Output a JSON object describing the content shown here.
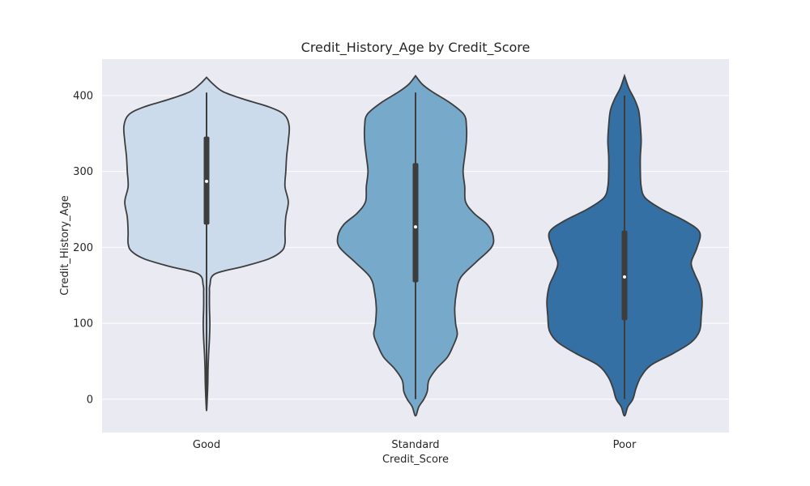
{
  "chart_data": {
    "type": "violin",
    "title": "Credit_History_Age by Credit_Score",
    "xlabel": "Credit_Score",
    "ylabel": "Credit_History_Age",
    "ylim": [
      -44,
      448
    ],
    "yticks": [
      0,
      100,
      200,
      300,
      400
    ],
    "grid": true,
    "colors": {
      "background": "#eaeaf2",
      "outline": "#3d3d3d",
      "box": "#3d3d3d"
    },
    "categories": [
      "Good",
      "Standard",
      "Poor"
    ],
    "series": [
      {
        "category": "Good",
        "color": "#cbdbeb",
        "min": 0,
        "q1": 230,
        "median": 287,
        "q3": 346,
        "max": 404,
        "kde_ymin": -15,
        "kde_ymax": 424,
        "density": [
          [
            -15,
            0.0
          ],
          [
            0,
            0.008
          ],
          [
            20,
            0.015
          ],
          [
            40,
            0.018
          ],
          [
            60,
            0.025
          ],
          [
            80,
            0.035
          ],
          [
            100,
            0.04
          ],
          [
            120,
            0.035
          ],
          [
            140,
            0.035
          ],
          [
            150,
            0.04
          ],
          [
            165,
            0.1
          ],
          [
            175,
            0.45
          ],
          [
            185,
            0.75
          ],
          [
            195,
            0.9
          ],
          [
            205,
            0.94
          ],
          [
            220,
            0.94
          ],
          [
            240,
            0.95
          ],
          [
            260,
            0.98
          ],
          [
            280,
            0.94
          ],
          [
            300,
            0.95
          ],
          [
            320,
            0.96
          ],
          [
            340,
            0.98
          ],
          [
            360,
            0.99
          ],
          [
            375,
            0.93
          ],
          [
            385,
            0.75
          ],
          [
            395,
            0.45
          ],
          [
            405,
            0.2
          ],
          [
            415,
            0.08
          ],
          [
            424,
            0.0
          ]
        ]
      },
      {
        "category": "Standard",
        "color": "#77a9ca",
        "min": 0,
        "q1": 154,
        "median": 227,
        "q3": 311,
        "max": 404,
        "kde_ymin": -22,
        "kde_ymax": 426,
        "density": [
          [
            -22,
            0.0
          ],
          [
            -10,
            0.04
          ],
          [
            0,
            0.1
          ],
          [
            10,
            0.14
          ],
          [
            25,
            0.16
          ],
          [
            40,
            0.25
          ],
          [
            55,
            0.38
          ],
          [
            70,
            0.45
          ],
          [
            85,
            0.5
          ],
          [
            100,
            0.48
          ],
          [
            120,
            0.47
          ],
          [
            140,
            0.49
          ],
          [
            160,
            0.54
          ],
          [
            180,
            0.72
          ],
          [
            200,
            0.91
          ],
          [
            215,
            0.93
          ],
          [
            230,
            0.86
          ],
          [
            245,
            0.7
          ],
          [
            260,
            0.6
          ],
          [
            280,
            0.59
          ],
          [
            300,
            0.57
          ],
          [
            320,
            0.59
          ],
          [
            340,
            0.61
          ],
          [
            360,
            0.61
          ],
          [
            375,
            0.58
          ],
          [
            390,
            0.42
          ],
          [
            405,
            0.2
          ],
          [
            415,
            0.08
          ],
          [
            426,
            0.0
          ]
        ]
      },
      {
        "category": "Poor",
        "color": "#3470a3",
        "min": 0,
        "q1": 104,
        "median": 161,
        "q3": 222,
        "max": 400,
        "kde_ymin": -22,
        "kde_ymax": 426,
        "density": [
          [
            -22,
            0.0
          ],
          [
            -10,
            0.04
          ],
          [
            0,
            0.1
          ],
          [
            15,
            0.14
          ],
          [
            30,
            0.2
          ],
          [
            45,
            0.32
          ],
          [
            60,
            0.58
          ],
          [
            75,
            0.8
          ],
          [
            90,
            0.9
          ],
          [
            110,
            0.92
          ],
          [
            130,
            0.93
          ],
          [
            150,
            0.9
          ],
          [
            165,
            0.84
          ],
          [
            180,
            0.8
          ],
          [
            200,
            0.87
          ],
          [
            220,
            0.9
          ],
          [
            235,
            0.72
          ],
          [
            250,
            0.45
          ],
          [
            265,
            0.25
          ],
          [
            280,
            0.2
          ],
          [
            300,
            0.19
          ],
          [
            320,
            0.19
          ],
          [
            340,
            0.2
          ],
          [
            360,
            0.19
          ],
          [
            380,
            0.17
          ],
          [
            395,
            0.12
          ],
          [
            410,
            0.05
          ],
          [
            426,
            0.0
          ]
        ]
      }
    ]
  }
}
